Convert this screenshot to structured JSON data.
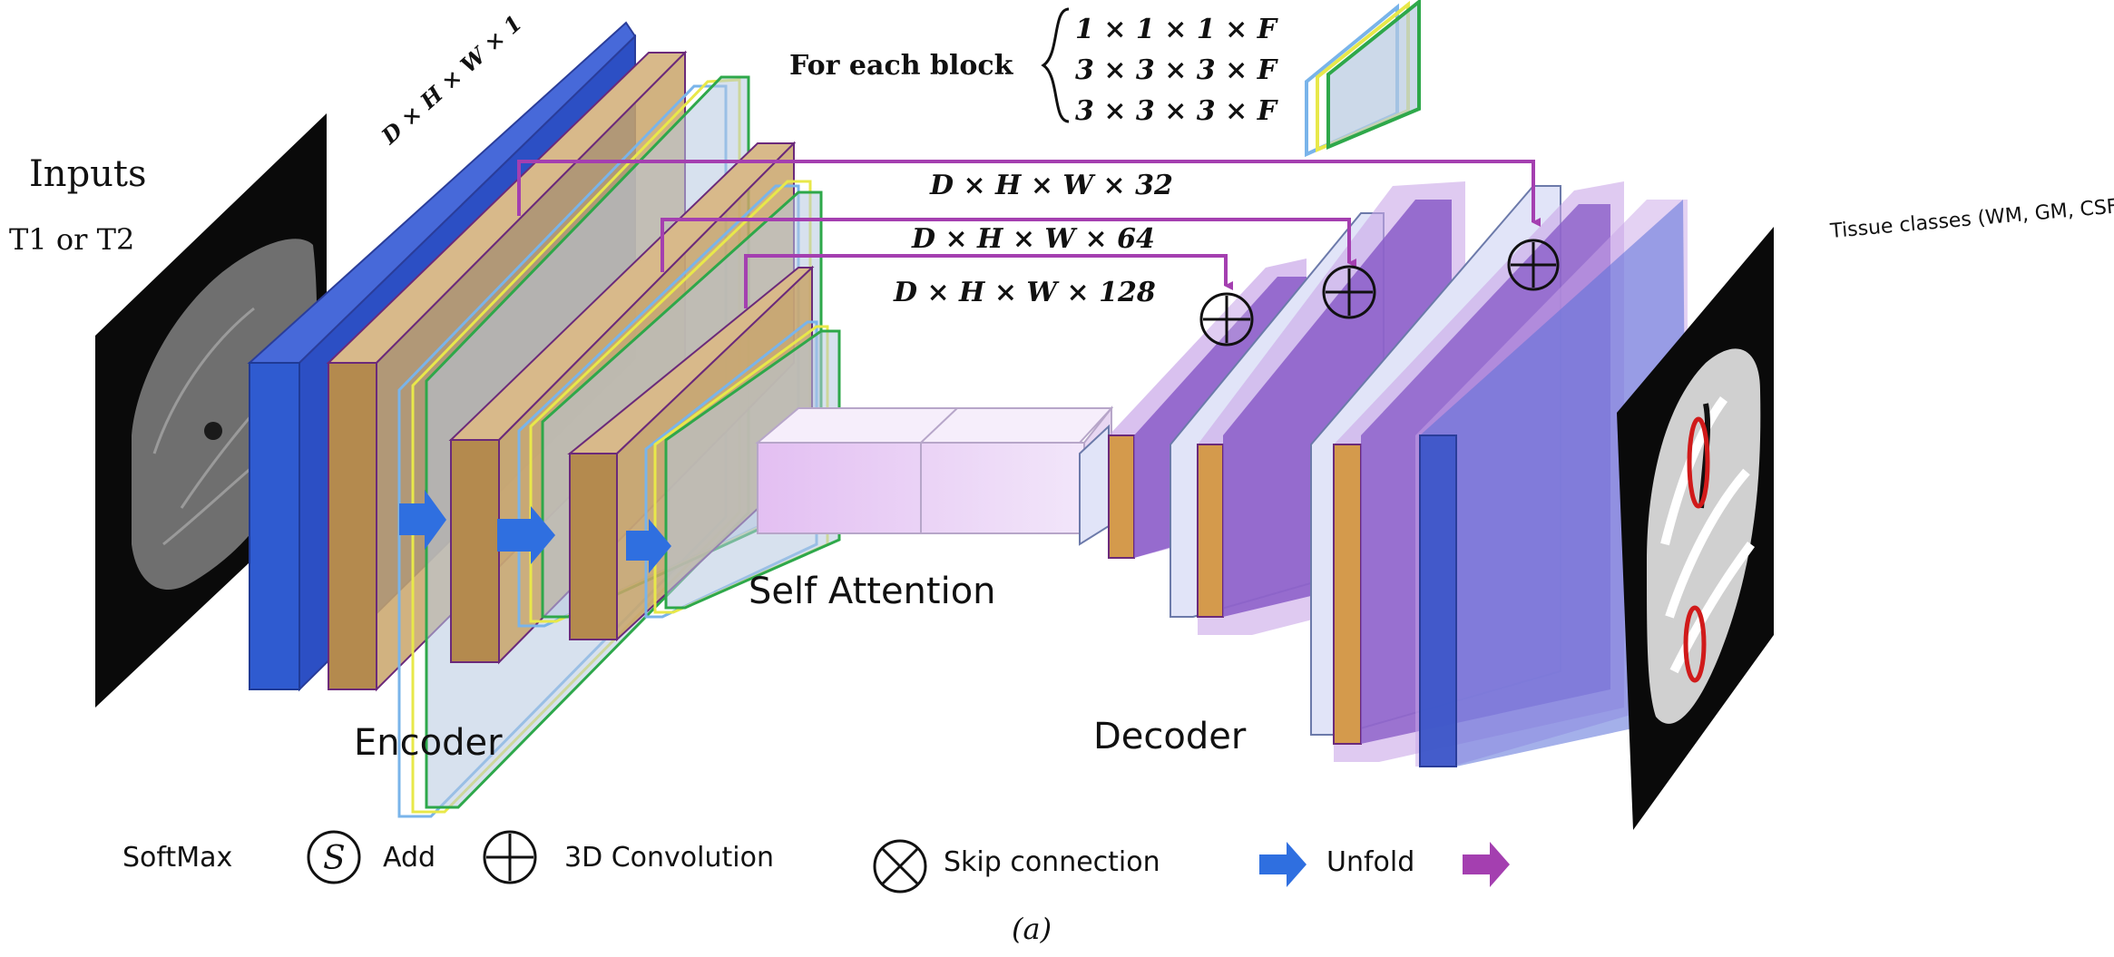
{
  "labels": {
    "inputs": "Inputs",
    "input_types": "T1 or T2",
    "encoder": "Encoder",
    "decoder": "Decoder",
    "self_attention": "Self Attention",
    "tissue_classes": "Tissue classes (WM, GM, CSF)",
    "input_dim": "D × H × W × 1",
    "for_each_block": "For each block",
    "block_kernels": [
      "1 × 1 × 1 × F",
      "3 × 3 × 3 × F",
      "3 × 3 × 3 × F"
    ],
    "skip_dims": [
      "D × H × W × 32",
      "D × H × W × 64",
      "D × H × W × 128"
    ],
    "caption": "(a)"
  },
  "legend": [
    {
      "label": "SoftMax",
      "icon": "softmax-s-circle-icon",
      "glyph": "S"
    },
    {
      "label": "Add",
      "icon": "add-circle-plus-icon"
    },
    {
      "label": "3D Convolution",
      "icon": "circle-times-icon"
    },
    {
      "label": "Skip connection",
      "icon": "blue-arrow-icon"
    },
    {
      "label": "Unfold",
      "icon": "purple-arrow-icon"
    }
  ],
  "colors": {
    "encoder_blue": "#2f5bd0",
    "block_tan": "#c9a46a",
    "block_outline": "#6b2a7a",
    "skip_arrow": "#a43fb0",
    "blue_arrow": "#2f6fe0",
    "attention_pink": "#e6c8f2",
    "decoder_purple": "#8a5cc8",
    "decoder_orange": "#d49a4c",
    "yellow_outline": "#e8e84a",
    "green_outline": "#2ea84a",
    "light_blue_outline": "#79b4ea"
  }
}
